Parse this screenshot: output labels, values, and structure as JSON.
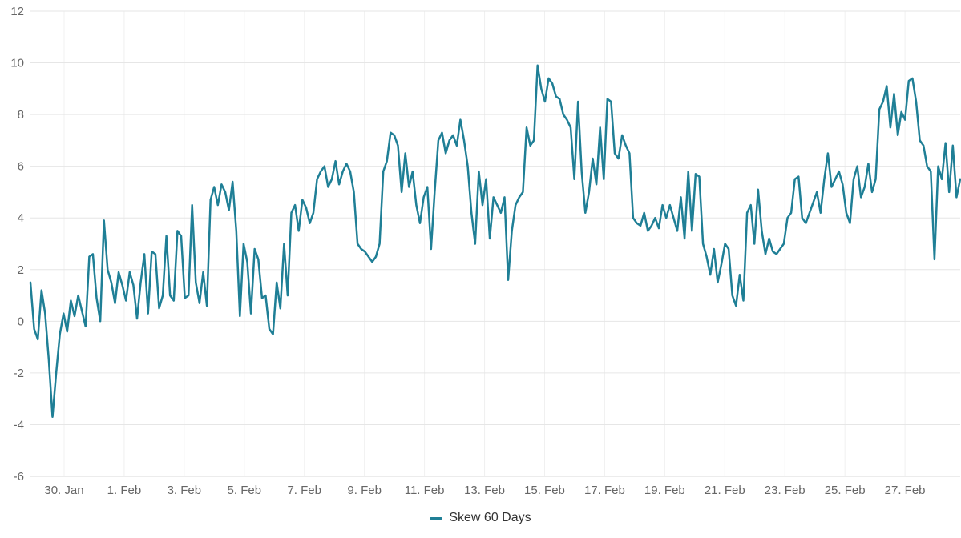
{
  "chart": {
    "colors": {
      "line": "#1F7F96",
      "grid_horizontal": "#E6E6E6",
      "grid_vertical": "#F0F0F0",
      "axis_line": "#D8D8D8",
      "axis_label": "#666666",
      "legend_text": "#333333"
    }
  },
  "legend": {
    "label": "Skew 60 Days"
  },
  "chart_data": {
    "type": "line",
    "title": "",
    "xlabel": "",
    "ylabel": "",
    "ylim": [
      -6,
      12
    ],
    "y_ticks": [
      -6,
      -4,
      -2,
      0,
      2,
      4,
      6,
      8,
      10,
      12
    ],
    "x_ticks": [
      {
        "label": "30. Jan",
        "pos": 0.0362
      },
      {
        "label": "1. Feb",
        "pos": 0.1008
      },
      {
        "label": "3. Feb",
        "pos": 0.1654
      },
      {
        "label": "5. Feb",
        "pos": 0.23
      },
      {
        "label": "7. Feb",
        "pos": 0.2946
      },
      {
        "label": "9. Feb",
        "pos": 0.3592
      },
      {
        "label": "11. Feb",
        "pos": 0.4238
      },
      {
        "label": "13. Feb",
        "pos": 0.4884
      },
      {
        "label": "15. Feb",
        "pos": 0.553
      },
      {
        "label": "17. Feb",
        "pos": 0.6176
      },
      {
        "label": "19. Feb",
        "pos": 0.6822
      },
      {
        "label": "21. Feb",
        "pos": 0.7468
      },
      {
        "label": "23. Feb",
        "pos": 0.8114
      },
      {
        "label": "25. Feb",
        "pos": 0.876
      },
      {
        "label": "27. Feb",
        "pos": 0.9406
      }
    ],
    "grid": true,
    "legend_position": "bottom-center",
    "x_range": [
      "29 Jan",
      "28 Feb"
    ],
    "series": [
      {
        "name": "Skew 60 Days",
        "color": "#1F7F96",
        "values": [
          1.5,
          -0.3,
          -0.7,
          1.2,
          0.3,
          -1.5,
          -3.7,
          -2.0,
          -0.5,
          0.3,
          -0.4,
          0.8,
          0.2,
          1.0,
          0.4,
          -0.2,
          2.5,
          2.6,
          0.9,
          0.0,
          3.9,
          2.0,
          1.5,
          0.7,
          1.9,
          1.4,
          0.8,
          1.9,
          1.4,
          0.1,
          1.5,
          2.6,
          0.3,
          2.7,
          2.6,
          0.5,
          1.0,
          3.3,
          1.0,
          0.8,
          3.5,
          3.3,
          0.9,
          1.0,
          4.5,
          1.5,
          0.7,
          1.9,
          0.6,
          4.7,
          5.2,
          4.5,
          5.3,
          5.0,
          4.3,
          5.4,
          3.5,
          0.2,
          3.0,
          2.3,
          0.3,
          2.8,
          2.4,
          0.9,
          1.0,
          -0.3,
          -0.5,
          1.5,
          0.5,
          3.0,
          1.0,
          4.2,
          4.5,
          3.5,
          4.7,
          4.4,
          3.8,
          4.2,
          5.5,
          5.8,
          6.0,
          5.2,
          5.5,
          6.2,
          5.3,
          5.8,
          6.1,
          5.8,
          5.0,
          3.0,
          2.8,
          2.7,
          2.5,
          2.3,
          2.5,
          3.0,
          5.8,
          6.2,
          7.3,
          7.2,
          6.8,
          5.0,
          6.5,
          5.2,
          5.8,
          4.5,
          3.8,
          4.8,
          5.2,
          2.8,
          5.0,
          7.0,
          7.3,
          6.5,
          7.0,
          7.2,
          6.8,
          7.8,
          7.0,
          6.0,
          4.2,
          3.0,
          5.8,
          4.5,
          5.5,
          3.2,
          4.8,
          4.5,
          4.2,
          4.8,
          1.6,
          3.5,
          4.5,
          4.8,
          5.0,
          7.5,
          6.8,
          7.0,
          9.9,
          9.0,
          8.5,
          9.4,
          9.2,
          8.7,
          8.6,
          8.0,
          7.8,
          7.5,
          5.5,
          8.5,
          5.8,
          4.2,
          5.0,
          6.3,
          5.3,
          7.5,
          5.5,
          8.6,
          8.5,
          6.5,
          6.3,
          7.2,
          6.8,
          6.5,
          4.0,
          3.8,
          3.7,
          4.2,
          3.5,
          3.7,
          4.0,
          3.6,
          4.5,
          4.0,
          4.5,
          4.0,
          3.5,
          4.8,
          3.2,
          5.8,
          3.5,
          5.7,
          5.6,
          3.0,
          2.5,
          1.8,
          2.8,
          1.5,
          2.2,
          3.0,
          2.8,
          1.0,
          0.6,
          1.8,
          0.8,
          4.2,
          4.5,
          3.0,
          5.1,
          3.5,
          2.6,
          3.2,
          2.7,
          2.6,
          2.8,
          3.0,
          4.0,
          4.2,
          5.5,
          5.6,
          4.0,
          3.8,
          4.2,
          4.6,
          5.0,
          4.2,
          5.5,
          6.5,
          5.2,
          5.5,
          5.8,
          5.3,
          4.2,
          3.8,
          5.5,
          6.0,
          4.8,
          5.2,
          6.1,
          5.0,
          5.5,
          8.2,
          8.5,
          9.1,
          7.5,
          8.8,
          7.2,
          8.1,
          7.8,
          9.3,
          9.4,
          8.5,
          7.0,
          6.8,
          6.0,
          5.8,
          2.4,
          6.0,
          5.5,
          6.9,
          5.0,
          6.8,
          4.8,
          5.5
        ]
      }
    ]
  }
}
